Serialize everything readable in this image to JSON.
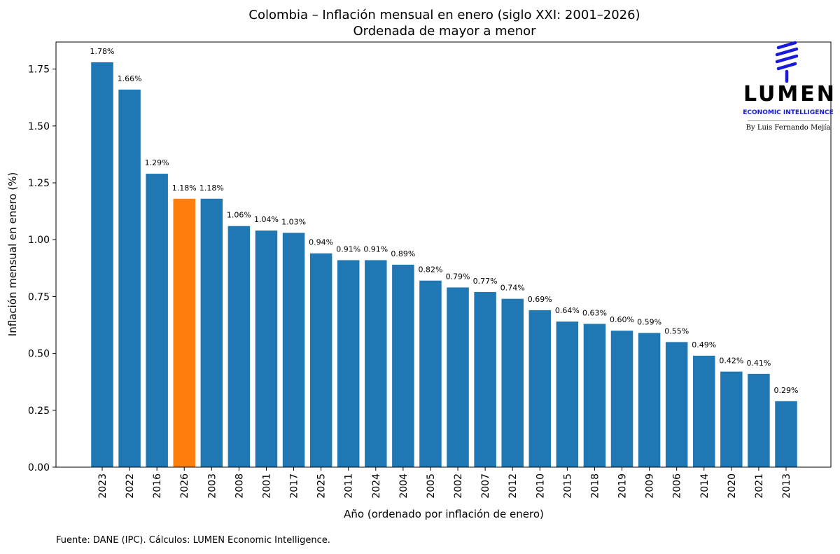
{
  "chart_data": {
    "type": "bar",
    "title": "Colombia – Inflación mensual en enero (siglo XXI: 2001–2026)",
    "subtitle": "Ordenada de mayor a menor",
    "xlabel": "Año (ordenado por inflación de enero)",
    "ylabel": "Inflación mensual en enero (%)",
    "ylim": [
      0,
      1.869
    ],
    "yticks": [
      "0.00",
      "0.25",
      "0.50",
      "0.75",
      "1.00",
      "1.25",
      "1.50",
      "1.75"
    ],
    "ytick_values": [
      0,
      0.25,
      0.5,
      0.75,
      1.0,
      1.25,
      1.5,
      1.75
    ],
    "categories": [
      "2023",
      "2022",
      "2016",
      "2026",
      "2003",
      "2008",
      "2001",
      "2017",
      "2025",
      "2011",
      "2024",
      "2004",
      "2005",
      "2002",
      "2007",
      "2012",
      "2010",
      "2015",
      "2018",
      "2019",
      "2009",
      "2006",
      "2014",
      "2020",
      "2021",
      "2013"
    ],
    "values": [
      1.78,
      1.66,
      1.29,
      1.18,
      1.18,
      1.06,
      1.04,
      1.03,
      0.94,
      0.91,
      0.91,
      0.89,
      0.82,
      0.79,
      0.77,
      0.74,
      0.69,
      0.64,
      0.63,
      0.6,
      0.59,
      0.55,
      0.49,
      0.42,
      0.41,
      0.29
    ],
    "data_labels": [
      "1.78%",
      "1.66%",
      "1.29%",
      "1.18%",
      "1.18%",
      "1.06%",
      "1.04%",
      "1.03%",
      "0.94%",
      "0.91%",
      "0.91%",
      "0.89%",
      "0.82%",
      "0.79%",
      "0.77%",
      "0.74%",
      "0.69%",
      "0.64%",
      "0.63%",
      "0.60%",
      "0.59%",
      "0.55%",
      "0.49%",
      "0.42%",
      "0.41%",
      "0.29%"
    ],
    "highlight_category": "2026",
    "colors": {
      "bar": "#1f77b4",
      "highlight": "#ff7f0e"
    },
    "grid": false,
    "legend": "none"
  },
  "source_note": "Fuente: DANE (IPC). Cálculos: LUMEN Economic Intelligence.",
  "logo": {
    "wordmark": "LUMEN",
    "tagline": "ECONOMIC INTELLIGENCE",
    "byline": "By Luis Fernando Mejía",
    "icon": "lumen-spiral-icon",
    "color": "#1a1adb"
  }
}
